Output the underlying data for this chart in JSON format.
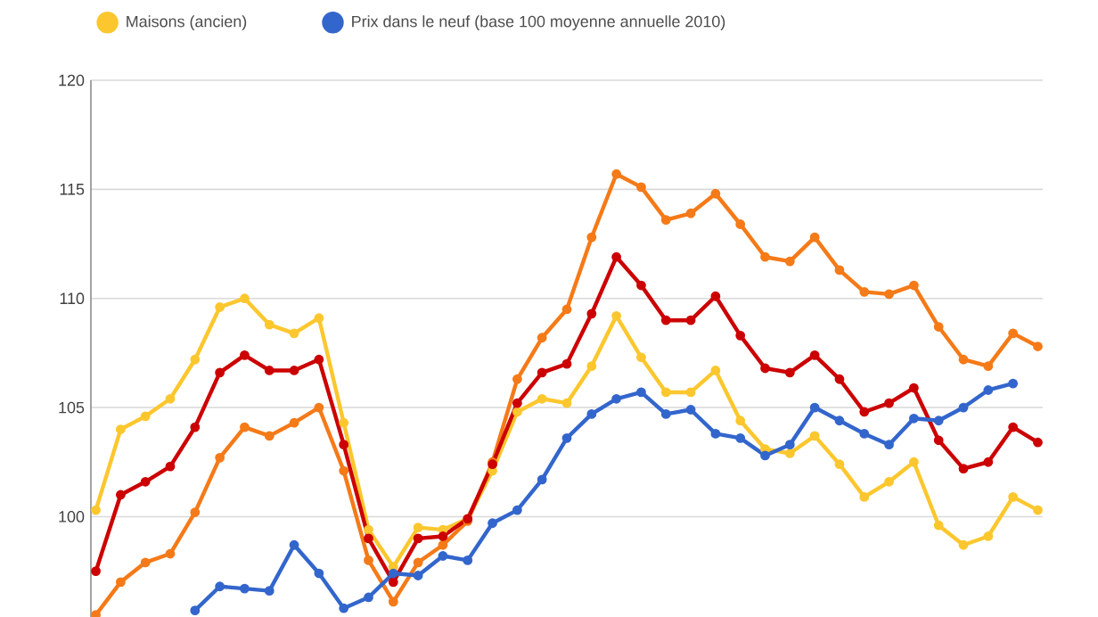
{
  "chart_data": {
    "type": "line",
    "categories": [
      null,
      null,
      null,
      null,
      null,
      null,
      null,
      null,
      null,
      null,
      null,
      null,
      null,
      null,
      null,
      null,
      null,
      null,
      null,
      null,
      null,
      null,
      null,
      null,
      null,
      null,
      null,
      null,
      null,
      null,
      null,
      null,
      null,
      null,
      null,
      null,
      null,
      null,
      null
    ],
    "series": [
      {
        "name": "Maisons (ancien)",
        "color": "#fcc72e",
        "values": [
          100.3,
          104.0,
          104.6,
          105.4,
          107.2,
          109.6,
          110.0,
          108.8,
          108.4,
          109.1,
          104.3,
          99.4,
          97.7,
          99.5,
          99.4,
          99.9,
          102.1,
          104.8,
          105.4,
          105.2,
          106.9,
          109.2,
          107.3,
          105.7,
          105.7,
          106.7,
          104.4,
          103.1,
          102.9,
          103.7,
          102.4,
          100.9,
          101.6,
          102.5,
          99.6,
          98.7,
          99.1,
          100.9,
          100.3
        ]
      },
      {
        "color": "#f57a18",
        "values": [
          95.5,
          97.0,
          97.9,
          98.3,
          100.2,
          102.7,
          104.1,
          103.7,
          104.3,
          105.0,
          102.1,
          98.0,
          96.1,
          97.9,
          98.7,
          99.8,
          102.5,
          106.3,
          108.2,
          109.5,
          112.8,
          115.7,
          115.1,
          113.6,
          113.9,
          114.8,
          113.4,
          111.9,
          111.7,
          112.8,
          111.3,
          110.3,
          110.2,
          110.6,
          108.7,
          107.2,
          106.9,
          108.4,
          107.8
        ]
      },
      {
        "color": "#cc0000",
        "values": [
          97.5,
          101.0,
          101.6,
          102.3,
          104.1,
          106.6,
          107.4,
          106.7,
          106.7,
          107.2,
          103.3,
          99.0,
          97.0,
          99.0,
          99.1,
          99.9,
          102.4,
          105.2,
          106.6,
          107.0,
          109.3,
          111.9,
          110.6,
          109.0,
          109.0,
          110.1,
          108.3,
          106.8,
          106.6,
          107.4,
          106.3,
          104.8,
          105.2,
          105.9,
          103.5,
          102.2,
          102.5,
          104.1,
          103.4
        ]
      },
      {
        "name": "Prix dans le neuf (base 100 moyenne annuelle 2010)",
        "color": "#3366cc",
        "values": [
          null,
          null,
          null,
          null,
          95.7,
          96.8,
          96.7,
          96.6,
          98.7,
          97.4,
          95.8,
          96.3,
          97.4,
          97.3,
          98.2,
          98.0,
          99.7,
          100.3,
          101.7,
          103.6,
          104.7,
          105.4,
          105.7,
          104.7,
          104.9,
          103.8,
          103.6,
          102.8,
          103.3,
          105.0,
          104.4,
          103.8,
          103.3,
          104.5,
          104.4,
          105.0,
          105.8,
          106.1,
          null
        ]
      }
    ],
    "ylim": [
      95.4,
      120
    ],
    "yticks": [
      100,
      105,
      110,
      115,
      120
    ],
    "grid": "y",
    "legend": "top",
    "marker": "circle",
    "line_style": "solid"
  }
}
